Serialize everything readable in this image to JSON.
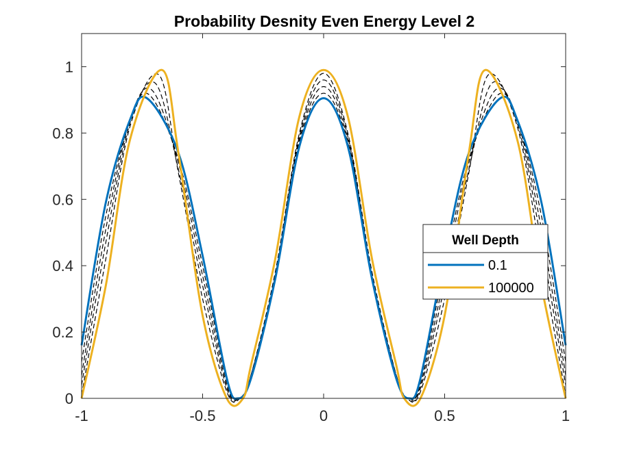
{
  "chart_data": {
    "type": "line",
    "title": "Probability Desnity Even Energy Level 2",
    "xlabel": "",
    "ylabel": "",
    "xlim": [
      -1,
      1
    ],
    "ylim": [
      0,
      1.1
    ],
    "x_ticks": [
      -1,
      -0.5,
      0,
      0.5,
      1
    ],
    "x_tick_labels": [
      "-1",
      "-0.5",
      "0",
      "0.5",
      "1"
    ],
    "y_ticks": [
      0,
      0.2,
      0.4,
      0.6,
      0.8,
      1
    ],
    "y_tick_labels": [
      "0",
      "0.2",
      "0.4",
      "0.6",
      "0.8",
      "1"
    ],
    "grid": false,
    "legend": {
      "title": "Well Depth",
      "placement": "right",
      "entries": [
        "0.1",
        "100000"
      ]
    },
    "series": [
      {
        "name": "0.1",
        "style": "solid",
        "color": "#0072BD",
        "x": [
          -1,
          -0.9,
          -0.8,
          -0.73,
          -0.6,
          -0.5,
          -0.4,
          -0.355,
          -0.3,
          -0.2,
          -0.1,
          0,
          0.1,
          0.2,
          0.3,
          0.355,
          0.4,
          0.5,
          0.6,
          0.73,
          0.8,
          0.9,
          1
        ],
        "y": [
          0.16,
          0.59,
          0.84,
          0.905,
          0.74,
          0.43,
          0.06,
          0,
          0.06,
          0.36,
          0.76,
          0.905,
          0.76,
          0.36,
          0.06,
          0,
          0.06,
          0.43,
          0.74,
          0.905,
          0.84,
          0.59,
          0.16
        ]
      },
      {
        "name": "",
        "style": "dashed",
        "color": "#000000",
        "x": [
          -1,
          -0.9,
          -0.8,
          -0.72,
          -0.6,
          -0.5,
          -0.4,
          -0.355,
          -0.3,
          -0.2,
          -0.1,
          0,
          0.1,
          0.2,
          0.3,
          0.355,
          0.4,
          0.5,
          0.6,
          0.72,
          0.8,
          0.9,
          1
        ],
        "y": [
          0.11,
          0.55,
          0.84,
          0.915,
          0.72,
          0.4,
          0.05,
          0,
          0.06,
          0.36,
          0.77,
          0.92,
          0.77,
          0.36,
          0.06,
          0,
          0.05,
          0.4,
          0.72,
          0.915,
          0.84,
          0.55,
          0.11
        ]
      },
      {
        "name": "",
        "style": "dashed",
        "color": "#000000",
        "x": [
          -1,
          -0.9,
          -0.8,
          -0.71,
          -0.6,
          -0.5,
          -0.4,
          -0.352,
          -0.3,
          -0.2,
          -0.1,
          0,
          0.1,
          0.2,
          0.3,
          0.352,
          0.4,
          0.5,
          0.6,
          0.71,
          0.8,
          0.9,
          1
        ],
        "y": [
          0.07,
          0.51,
          0.84,
          0.93,
          0.71,
          0.37,
          0.04,
          0,
          0.06,
          0.37,
          0.78,
          0.94,
          0.78,
          0.37,
          0.06,
          0,
          0.04,
          0.37,
          0.71,
          0.93,
          0.84,
          0.51,
          0.07
        ]
      },
      {
        "name": "",
        "style": "dashed",
        "color": "#000000",
        "x": [
          -1,
          -0.9,
          -0.8,
          -0.695,
          -0.6,
          -0.5,
          -0.4,
          -0.35,
          -0.3,
          -0.2,
          -0.1,
          0,
          0.1,
          0.2,
          0.3,
          0.35,
          0.4,
          0.5,
          0.6,
          0.695,
          0.8,
          0.9,
          1
        ],
        "y": [
          0.04,
          0.47,
          0.83,
          0.95,
          0.69,
          0.34,
          0.03,
          0,
          0.07,
          0.37,
          0.79,
          0.96,
          0.79,
          0.37,
          0.07,
          0,
          0.03,
          0.34,
          0.69,
          0.95,
          0.83,
          0.47,
          0.04
        ]
      },
      {
        "name": "",
        "style": "dashed",
        "color": "#000000",
        "x": [
          -1,
          -0.9,
          -0.8,
          -0.68,
          -0.6,
          -0.5,
          -0.4,
          -0.345,
          -0.3,
          -0.2,
          -0.1,
          0,
          0.1,
          0.2,
          0.3,
          0.345,
          0.4,
          0.5,
          0.6,
          0.68,
          0.8,
          0.9,
          1
        ],
        "y": [
          0.01,
          0.42,
          0.82,
          0.975,
          0.68,
          0.3,
          0.02,
          0,
          0.07,
          0.38,
          0.8,
          0.98,
          0.8,
          0.38,
          0.07,
          0,
          0.02,
          0.3,
          0.68,
          0.975,
          0.82,
          0.42,
          0.01
        ]
      },
      {
        "name": "100000",
        "style": "solid",
        "color": "#EDB120",
        "x": [
          -1,
          -0.9,
          -0.8,
          -0.667,
          -0.6,
          -0.5,
          -0.4,
          -0.333,
          -0.3,
          -0.2,
          -0.1,
          0,
          0.1,
          0.2,
          0.3,
          0.333,
          0.4,
          0.5,
          0.6,
          0.667,
          0.8,
          0.9,
          1
        ],
        "y": [
          0,
          0.34,
          0.78,
          0.99,
          0.74,
          0.25,
          0.0,
          0,
          0.1,
          0.42,
          0.85,
          0.99,
          0.85,
          0.42,
          0.1,
          0,
          0.0,
          0.25,
          0.74,
          0.99,
          0.78,
          0.34,
          0
        ]
      }
    ]
  }
}
